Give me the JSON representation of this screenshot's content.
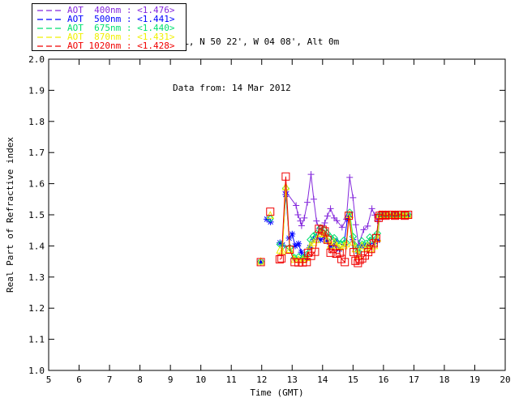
{
  "header": {
    "line1": "PML, N 50 22', W 04 08', Alt 0m",
    "line2": "Data from: 14 Mar 2012"
  },
  "legend": {
    "items": [
      {
        "series": "AOT 400nm",
        "value": "<1.476>",
        "label": "AOT  400nm : <1.476>",
        "color": "#8428dc"
      },
      {
        "series": "AOT 500nm",
        "value": "<1.441>",
        "label": "AOT  500nm : <1.441>",
        "color": "#0000ff"
      },
      {
        "series": "AOT 675nm",
        "value": "<1.440>",
        "label": "AOT  675nm : <1.440>",
        "color": "#00e070"
      },
      {
        "series": "AOT 870nm",
        "value": "<1.431>",
        "label": "AOT  870nm : <1.431>",
        "color": "#f0f000"
      },
      {
        "series": "AOT 1020nm",
        "value": "<1.428>",
        "label": "AOT 1020nm : <1.428>",
        "color": "#f00000"
      }
    ]
  },
  "chart_data": {
    "type": "line",
    "title": "",
    "xlabel": "Time (GMT)",
    "ylabel": "Real Part of Refractive index",
    "xlim": [
      5,
      20
    ],
    "ylim": [
      1.0,
      2.0
    ],
    "xticks": [
      5,
      6,
      7,
      8,
      9,
      10,
      11,
      12,
      13,
      14,
      15,
      16,
      17,
      18,
      19,
      20
    ],
    "yticks": [
      1.0,
      1.1,
      1.2,
      1.3,
      1.4,
      1.5,
      1.6,
      1.7,
      1.8,
      1.9,
      2.0
    ],
    "grid": false,
    "legend_position": "top-left",
    "note": "values estimated from plot pixels",
    "series": [
      {
        "name": "AOT 400nm",
        "mean": "<1.476>",
        "color": "#8428dc",
        "marker": "plus",
        "segments": [
          [
            [
              12.79,
              1.575
            ],
            [
              13.13,
              1.53
            ],
            [
              13.19,
              1.5
            ],
            [
              13.27,
              1.48
            ],
            [
              13.31,
              1.465
            ],
            [
              13.4,
              1.49
            ],
            [
              13.5,
              1.54
            ],
            [
              13.62,
              1.63
            ],
            [
              13.71,
              1.55
            ],
            [
              13.8,
              1.48
            ],
            [
              13.89,
              1.455
            ],
            [
              13.98,
              1.45
            ],
            [
              14.07,
              1.474
            ],
            [
              14.16,
              1.496
            ],
            [
              14.26,
              1.52
            ],
            [
              14.38,
              1.49
            ],
            [
              14.47,
              1.481
            ],
            [
              14.64,
              1.46
            ],
            [
              14.78,
              1.486
            ],
            [
              14.89,
              1.62
            ],
            [
              15.0,
              1.555
            ],
            [
              15.09,
              1.468
            ],
            [
              15.18,
              1.403
            ],
            [
              15.35,
              1.452
            ],
            [
              15.48,
              1.464
            ],
            [
              15.62,
              1.52
            ],
            [
              15.71,
              1.499
            ],
            [
              15.8,
              1.481
            ],
            [
              15.85,
              1.49
            ]
          ]
        ]
      },
      {
        "name": "AOT 500nm",
        "mean": "<1.441>",
        "color": "#0000ff",
        "marker": "asterisk",
        "segments": [
          [
            [
              11.97,
              1.348
            ]
          ],
          [
            [
              12.17,
              1.486
            ],
            [
              12.29,
              1.477
            ]
          ],
          [
            [
              12.6,
              1.41
            ],
            [
              12.68,
              1.403
            ],
            [
              12.79,
              1.565
            ],
            [
              12.9,
              1.425
            ],
            [
              13.0,
              1.438
            ],
            [
              13.1,
              1.4
            ],
            [
              13.21,
              1.407
            ],
            [
              13.3,
              1.38
            ],
            [
              13.4,
              1.368
            ],
            [
              13.48,
              1.36
            ],
            [
              13.58,
              1.395
            ],
            [
              13.7,
              1.42
            ],
            [
              13.8,
              1.43
            ],
            [
              13.93,
              1.42
            ],
            [
              14.05,
              1.43
            ],
            [
              14.15,
              1.415
            ],
            [
              14.26,
              1.398
            ],
            [
              14.38,
              1.4
            ],
            [
              14.43,
              1.415
            ],
            [
              14.55,
              1.39
            ],
            [
              14.7,
              1.405
            ],
            [
              14.82,
              1.49
            ],
            [
              14.88,
              1.5
            ],
            [
              15.0,
              1.42
            ],
            [
              15.08,
              1.395
            ],
            [
              15.18,
              1.377
            ],
            [
              15.29,
              1.4
            ],
            [
              15.4,
              1.398
            ],
            [
              15.48,
              1.403
            ],
            [
              15.59,
              1.398
            ],
            [
              15.7,
              1.408
            ],
            [
              15.8,
              1.418
            ],
            [
              15.88,
              1.497
            ],
            [
              15.97,
              1.5
            ],
            [
              16.07,
              1.497
            ],
            [
              16.18,
              1.5
            ],
            [
              16.28,
              1.497
            ],
            [
              16.38,
              1.5
            ],
            [
              16.48,
              1.497
            ],
            [
              16.58,
              1.5
            ],
            [
              16.7,
              1.497
            ],
            [
              16.81,
              1.5
            ]
          ]
        ]
      },
      {
        "name": "AOT 675nm",
        "mean": "<1.440>",
        "color": "#00e070",
        "marker": "diamond",
        "segments": [
          [
            [
              11.97,
              1.35
            ]
          ],
          [
            [
              12.28,
              1.488
            ]
          ],
          [
            [
              12.6,
              1.405
            ],
            [
              12.68,
              1.398
            ],
            [
              12.79,
              1.585
            ],
            [
              12.92,
              1.395
            ],
            [
              13.08,
              1.362
            ],
            [
              13.21,
              1.365
            ],
            [
              13.35,
              1.36
            ],
            [
              13.48,
              1.372
            ],
            [
              13.6,
              1.42
            ],
            [
              13.7,
              1.432
            ],
            [
              13.8,
              1.44
            ],
            [
              13.93,
              1.458
            ],
            [
              14.05,
              1.452
            ],
            [
              14.15,
              1.44
            ],
            [
              14.26,
              1.428
            ],
            [
              14.38,
              1.426
            ],
            [
              14.47,
              1.412
            ],
            [
              14.58,
              1.406
            ],
            [
              14.7,
              1.418
            ],
            [
              14.78,
              1.41
            ],
            [
              14.89,
              1.508
            ],
            [
              15.0,
              1.43
            ],
            [
              15.08,
              1.4
            ],
            [
              15.18,
              1.382
            ],
            [
              15.29,
              1.416
            ],
            [
              15.44,
              1.408
            ],
            [
              15.55,
              1.428
            ],
            [
              15.62,
              1.42
            ],
            [
              15.72,
              1.43
            ],
            [
              15.8,
              1.44
            ],
            [
              15.88,
              1.5
            ],
            [
              15.97,
              1.5
            ],
            [
              16.07,
              1.5
            ],
            [
              16.18,
              1.5
            ],
            [
              16.28,
              1.5
            ],
            [
              16.38,
              1.5
            ],
            [
              16.48,
              1.5
            ],
            [
              16.58,
              1.5
            ],
            [
              16.7,
              1.5
            ],
            [
              16.81,
              1.5
            ]
          ]
        ]
      },
      {
        "name": "AOT 870nm",
        "mean": "<1.431>",
        "color": "#f0f000",
        "marker": "triangle",
        "segments": [
          [
            [
              11.97,
              1.35
            ]
          ],
          [
            [
              12.28,
              1.498
            ]
          ],
          [
            [
              12.6,
              1.386
            ],
            [
              12.68,
              1.382
            ],
            [
              12.79,
              1.59
            ],
            [
              12.92,
              1.388
            ],
            [
              13.08,
              1.356
            ],
            [
              13.21,
              1.356
            ],
            [
              13.35,
              1.355
            ],
            [
              13.48,
              1.362
            ],
            [
              13.6,
              1.4
            ],
            [
              13.7,
              1.41
            ],
            [
              13.8,
              1.42
            ],
            [
              13.93,
              1.44
            ],
            [
              14.05,
              1.438
            ],
            [
              14.15,
              1.42
            ],
            [
              14.26,
              1.402
            ],
            [
              14.38,
              1.412
            ],
            [
              14.47,
              1.4
            ],
            [
              14.58,
              1.396
            ],
            [
              14.7,
              1.4
            ],
            [
              14.78,
              1.406
            ],
            [
              14.89,
              1.5
            ],
            [
              15.0,
              1.412
            ],
            [
              15.08,
              1.39
            ],
            [
              15.18,
              1.37
            ],
            [
              15.29,
              1.4
            ],
            [
              15.44,
              1.394
            ],
            [
              15.48,
              1.4
            ],
            [
              15.59,
              1.39
            ],
            [
              15.7,
              1.4
            ],
            [
              15.8,
              1.424
            ],
            [
              15.88,
              1.5
            ],
            [
              15.97,
              1.5
            ],
            [
              16.07,
              1.5
            ],
            [
              16.18,
              1.5
            ],
            [
              16.28,
              1.5
            ],
            [
              16.38,
              1.5
            ],
            [
              16.48,
              1.5
            ],
            [
              16.58,
              1.5
            ],
            [
              16.7,
              1.5
            ],
            [
              16.81,
              1.5
            ]
          ]
        ]
      },
      {
        "name": "AOT 1020nm",
        "mean": "<1.428>",
        "color": "#f00000",
        "marker": "square",
        "segments": [
          [
            [
              11.97,
              1.348
            ]
          ],
          [
            [
              12.28,
              1.51
            ]
          ],
          [
            [
              12.59,
              1.357
            ],
            [
              12.65,
              1.36
            ],
            [
              12.79,
              1.623
            ],
            [
              12.92,
              1.388
            ],
            [
              13.08,
              1.348
            ],
            [
              13.21,
              1.347
            ],
            [
              13.35,
              1.347
            ],
            [
              13.48,
              1.348
            ],
            [
              13.53,
              1.378
            ],
            [
              13.62,
              1.368
            ],
            [
              13.75,
              1.381
            ],
            [
              13.88,
              1.455
            ],
            [
              14.0,
              1.452
            ],
            [
              14.07,
              1.447
            ],
            [
              14.16,
              1.42
            ],
            [
              14.26,
              1.378
            ],
            [
              14.33,
              1.39
            ],
            [
              14.45,
              1.375
            ],
            [
              14.56,
              1.377
            ],
            [
              14.62,
              1.358
            ],
            [
              14.73,
              1.348
            ],
            [
              14.86,
              1.497
            ],
            [
              15.02,
              1.38
            ],
            [
              15.08,
              1.352
            ],
            [
              15.16,
              1.345
            ],
            [
              15.22,
              1.355
            ],
            [
              15.3,
              1.36
            ],
            [
              15.39,
              1.369
            ],
            [
              15.5,
              1.38
            ],
            [
              15.59,
              1.39
            ],
            [
              15.68,
              1.408
            ],
            [
              15.76,
              1.425
            ],
            [
              15.84,
              1.49
            ],
            [
              15.88,
              1.497
            ],
            [
              15.97,
              1.5
            ],
            [
              16.07,
              1.497
            ],
            [
              16.18,
              1.5
            ],
            [
              16.28,
              1.5
            ],
            [
              16.38,
              1.497
            ],
            [
              16.48,
              1.5
            ],
            [
              16.58,
              1.5
            ],
            [
              16.7,
              1.497
            ],
            [
              16.81,
              1.5
            ]
          ]
        ]
      }
    ]
  }
}
